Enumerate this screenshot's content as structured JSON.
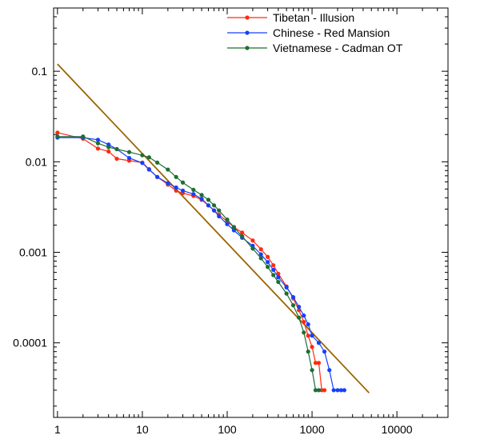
{
  "chart_data": {
    "type": "line",
    "xscale": "log",
    "yscale": "log",
    "xlim": [
      0.9,
      40000
    ],
    "ylim": [
      1.5e-05,
      0.5
    ],
    "grid": false,
    "legend_position": "top-right",
    "x_ticks": [
      {
        "value": 1,
        "label": "1"
      },
      {
        "value": 10,
        "label": "10"
      },
      {
        "value": 100,
        "label": "100"
      },
      {
        "value": 1000,
        "label": "1000"
      },
      {
        "value": 10000,
        "label": "10000"
      }
    ],
    "y_ticks": [
      {
        "value": 0.1,
        "label": "0.1"
      },
      {
        "value": 0.01,
        "label": "0.01"
      },
      {
        "value": 0.001,
        "label": "0.001"
      },
      {
        "value": 0.0001,
        "label": "0.0001"
      }
    ],
    "series": [
      {
        "name": "Tibetan - Illusion",
        "color": "#ff2a10",
        "x": [
          1,
          2,
          3,
          4,
          5,
          7,
          10,
          12,
          15,
          20,
          25,
          30,
          40,
          50,
          60,
          70,
          80,
          100,
          120,
          150,
          200,
          250,
          300,
          350,
          400,
          500,
          600,
          700,
          800,
          900,
          1000,
          1100,
          1200,
          1300,
          1400
        ],
        "y": [
          0.021,
          0.018,
          0.014,
          0.013,
          0.0108,
          0.0103,
          0.0098,
          0.0083,
          0.0068,
          0.0056,
          0.0048,
          0.0045,
          0.0042,
          0.0038,
          0.0033,
          0.0029,
          0.0026,
          0.0022,
          0.0019,
          0.00165,
          0.00135,
          0.00108,
          0.00089,
          0.00072,
          0.00058,
          0.00042,
          0.00031,
          0.00023,
          0.00017,
          0.00012,
          9e-05,
          6e-05,
          6e-05,
          3e-05,
          3e-05
        ]
      },
      {
        "name": "Chinese - Red Mansion",
        "color": "#1440ff",
        "x": [
          1,
          2,
          3,
          4,
          5,
          7,
          10,
          12,
          15,
          20,
          25,
          30,
          40,
          50,
          60,
          70,
          80,
          100,
          120,
          150,
          200,
          250,
          300,
          350,
          400,
          500,
          600,
          700,
          800,
          900,
          1000,
          1200,
          1400,
          1600,
          1800,
          2000,
          2200,
          2400
        ],
        "y": [
          0.0185,
          0.0185,
          0.0175,
          0.0155,
          0.0138,
          0.011,
          0.0097,
          0.0082,
          0.0068,
          0.0058,
          0.0052,
          0.0048,
          0.0044,
          0.0039,
          0.0033,
          0.0029,
          0.0025,
          0.00205,
          0.00175,
          0.00145,
          0.00118,
          0.00095,
          0.00078,
          0.00064,
          0.00053,
          0.00041,
          0.00032,
          0.00025,
          0.0002,
          0.00016,
          0.00012,
          0.0001,
          8e-05,
          5e-05,
          3e-05,
          3e-05,
          3e-05,
          3e-05
        ]
      },
      {
        "name": "Vietnamese - Cadman OT",
        "color": "#1e6e32",
        "x": [
          1,
          2,
          3,
          4,
          5,
          7,
          10,
          12,
          15,
          20,
          25,
          30,
          40,
          50,
          60,
          70,
          80,
          100,
          120,
          150,
          200,
          250,
          300,
          350,
          400,
          500,
          600,
          700,
          800,
          900,
          1000,
          1100,
          1200
        ],
        "y": [
          0.019,
          0.019,
          0.016,
          0.0145,
          0.0138,
          0.0128,
          0.0118,
          0.0112,
          0.0098,
          0.0082,
          0.0068,
          0.0059,
          0.0049,
          0.0043,
          0.0038,
          0.0033,
          0.0029,
          0.0023,
          0.0019,
          0.0015,
          0.0011,
          0.00086,
          0.00069,
          0.00056,
          0.00047,
          0.00035,
          0.00026,
          0.00019,
          0.00013,
          8e-05,
          5e-05,
          3e-05,
          3e-05
        ]
      }
    ],
    "reference_line": {
      "color": "#9a6400",
      "x": [
        1,
        4700
      ],
      "y": [
        0.12,
        2.8e-05
      ]
    }
  }
}
